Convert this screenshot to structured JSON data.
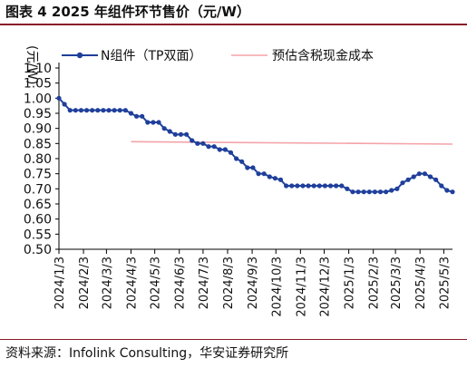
{
  "figure": {
    "title": "图表 4  2025 年组件环节售价（元/W）",
    "source": "资料来源：Infolink Consulting，华安证券研究所"
  },
  "chart_data": {
    "type": "line",
    "ylabel": "(元/W)",
    "ylim": [
      0.5,
      1.1
    ],
    "yticks": [
      "1.10",
      "1.05",
      "1.00",
      "0.95",
      "0.90",
      "0.85",
      "0.80",
      "0.75",
      "0.70",
      "0.65",
      "0.60",
      "0.55",
      "0.50"
    ],
    "xticks": [
      "2024/1/3",
      "2024/2/3",
      "2024/3/3",
      "2024/4/3",
      "2024/5/3",
      "2024/6/3",
      "2024/7/3",
      "2024/8/3",
      "2024/9/3",
      "2024/10/3",
      "2024/11/3",
      "2024/12/3",
      "2025/1/3",
      "2025/2/3",
      "2025/3/3",
      "2025/4/3",
      "2025/5/3"
    ],
    "legend_position": "top",
    "series": [
      {
        "name": "N组件（TP双面）",
        "color": "#1f3f9b",
        "marker": "circle",
        "x": [
          "2024/1/3",
          "2024/1/10",
          "2024/1/17",
          "2024/1/24",
          "2024/1/31",
          "2024/2/7",
          "2024/2/14",
          "2024/2/21",
          "2024/2/28",
          "2024/3/6",
          "2024/3/13",
          "2024/3/20",
          "2024/3/27",
          "2024/4/3",
          "2024/4/10",
          "2024/4/17",
          "2024/4/24",
          "2024/5/1",
          "2024/5/8",
          "2024/5/15",
          "2024/5/22",
          "2024/5/29",
          "2024/6/5",
          "2024/6/12",
          "2024/6/19",
          "2024/6/26",
          "2024/7/3",
          "2024/7/10",
          "2024/7/17",
          "2024/7/24",
          "2024/7/31",
          "2024/8/7",
          "2024/8/14",
          "2024/8/21",
          "2024/8/28",
          "2024/9/4",
          "2024/9/11",
          "2024/9/18",
          "2024/9/25",
          "2024/10/2",
          "2024/10/9",
          "2024/10/16",
          "2024/10/23",
          "2024/10/30",
          "2024/11/6",
          "2024/11/13",
          "2024/11/20",
          "2024/11/27",
          "2024/12/4",
          "2024/12/11",
          "2024/12/18",
          "2024/12/25",
          "2025/1/1",
          "2025/1/8",
          "2025/1/15",
          "2025/1/22",
          "2025/1/29",
          "2025/2/5",
          "2025/2/12",
          "2025/2/19",
          "2025/2/26",
          "2025/3/5",
          "2025/3/12",
          "2025/3/19",
          "2025/3/26",
          "2025/4/2",
          "2025/4/9",
          "2025/4/16",
          "2025/4/23",
          "2025/4/30",
          "2025/5/7",
          "2025/5/14"
        ],
        "values": [
          1.0,
          0.98,
          0.96,
          0.96,
          0.96,
          0.96,
          0.96,
          0.96,
          0.96,
          0.96,
          0.96,
          0.96,
          0.96,
          0.95,
          0.94,
          0.94,
          0.92,
          0.92,
          0.92,
          0.9,
          0.89,
          0.88,
          0.88,
          0.88,
          0.86,
          0.85,
          0.85,
          0.84,
          0.84,
          0.83,
          0.83,
          0.82,
          0.8,
          0.79,
          0.77,
          0.77,
          0.75,
          0.75,
          0.74,
          0.735,
          0.73,
          0.71,
          0.71,
          0.71,
          0.71,
          0.71,
          0.71,
          0.71,
          0.71,
          0.71,
          0.71,
          0.71,
          0.7,
          0.69,
          0.69,
          0.69,
          0.69,
          0.69,
          0.69,
          0.69,
          0.695,
          0.7,
          0.72,
          0.73,
          0.74,
          0.75,
          0.75,
          0.74,
          0.73,
          0.71,
          0.695,
          0.69
        ]
      },
      {
        "name": "预估含税现金成本",
        "color": "#f4a3a8",
        "marker": "none",
        "x": [
          "2024/4/3",
          "2025/5/14"
        ],
        "values": [
          0.856,
          0.848
        ]
      }
    ]
  }
}
